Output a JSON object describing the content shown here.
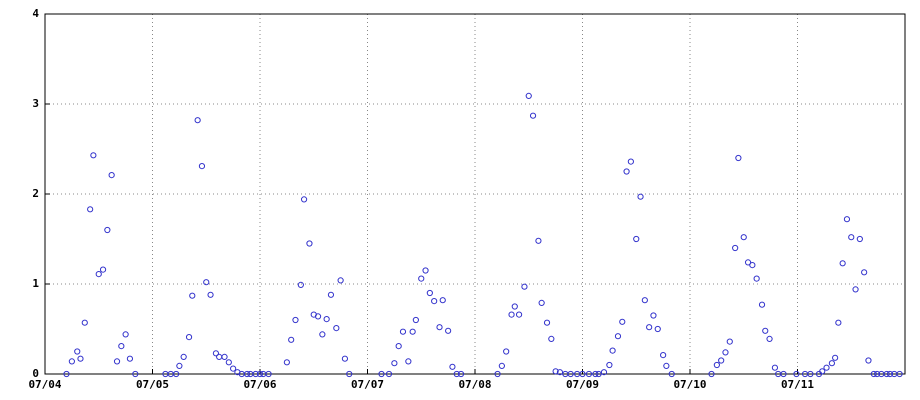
{
  "chart_data": {
    "type": "scatter",
    "color": "#3333cc",
    "grid": true,
    "xlim": [
      0,
      8
    ],
    "ylim": [
      0,
      4
    ],
    "yticks": [
      0,
      1,
      2,
      3,
      4
    ],
    "xticks": [
      {
        "value": 0,
        "label": "07/04"
      },
      {
        "value": 1,
        "label": "07/05"
      },
      {
        "value": 2,
        "label": "07/06"
      },
      {
        "value": 3,
        "label": "07/07"
      },
      {
        "value": 4,
        "label": "07/08"
      },
      {
        "value": 5,
        "label": "07/09"
      },
      {
        "value": 6,
        "label": "07/10"
      },
      {
        "value": 7,
        "label": "07/11"
      }
    ],
    "x": [
      0.2,
      0.25,
      0.3,
      0.33,
      0.37,
      0.42,
      0.45,
      0.5,
      0.54,
      0.58,
      0.62,
      0.67,
      0.71,
      0.75,
      0.79,
      0.84,
      1.12,
      1.17,
      1.22,
      1.25,
      1.29,
      1.34,
      1.37,
      1.42,
      1.46,
      1.5,
      1.54,
      1.59,
      1.62,
      1.67,
      1.71,
      1.75,
      1.79,
      1.83,
      1.88,
      1.91,
      1.96,
      2.0,
      2.03,
      2.08,
      2.25,
      2.29,
      2.33,
      2.38,
      2.41,
      2.46,
      2.5,
      2.54,
      2.58,
      2.62,
      2.66,
      2.71,
      2.75,
      2.79,
      2.83,
      3.13,
      3.2,
      3.25,
      3.29,
      3.33,
      3.38,
      3.42,
      3.45,
      3.5,
      3.54,
      3.58,
      3.62,
      3.67,
      3.7,
      3.75,
      3.79,
      3.83,
      3.87,
      4.21,
      4.25,
      4.29,
      4.34,
      4.37,
      4.41,
      4.46,
      4.5,
      4.54,
      4.59,
      4.62,
      4.67,
      4.71,
      4.75,
      4.79,
      4.84,
      4.89,
      4.95,
      5.0,
      5.06,
      5.12,
      5.15,
      5.2,
      5.25,
      5.28,
      5.33,
      5.37,
      5.41,
      5.45,
      5.5,
      5.54,
      5.58,
      5.62,
      5.66,
      5.7,
      5.75,
      5.78,
      5.83,
      6.2,
      6.25,
      6.29,
      6.33,
      6.37,
      6.42,
      6.45,
      6.5,
      6.54,
      6.58,
      6.62,
      6.67,
      6.7,
      6.74,
      6.79,
      6.82,
      6.87,
      6.99,
      7.07,
      7.12,
      7.2,
      7.23,
      7.27,
      7.32,
      7.35,
      7.38,
      7.42,
      7.46,
      7.5,
      7.54,
      7.58,
      7.62,
      7.66,
      7.71,
      7.74,
      7.78,
      7.83,
      7.86,
      7.9,
      7.95
    ],
    "values": [
      0,
      0.14,
      0.25,
      0.17,
      0.57,
      1.83,
      2.43,
      1.11,
      1.16,
      1.6,
      2.21,
      0.14,
      0.31,
      0.44,
      0.17,
      0,
      0,
      0,
      0,
      0.09,
      0.19,
      0.41,
      0.87,
      2.82,
      2.31,
      1.02,
      0.88,
      0.23,
      0.19,
      0.19,
      0.13,
      0.06,
      0.02,
      0,
      0,
      0,
      0,
      0,
      0,
      0,
      0.13,
      0.38,
      0.6,
      0.99,
      1.94,
      1.45,
      0.66,
      0.64,
      0.44,
      0.61,
      0.88,
      0.51,
      1.04,
      0.17,
      0,
      0,
      0,
      0.12,
      0.31,
      0.47,
      0.14,
      0.47,
      0.6,
      1.06,
      1.15,
      0.9,
      0.81,
      0.52,
      0.82,
      0.48,
      0.08,
      0,
      0,
      0,
      0.09,
      0.25,
      0.66,
      0.75,
      0.66,
      0.97,
      3.09,
      2.87,
      1.48,
      0.79,
      0.57,
      0.39,
      0.03,
      0.02,
      0,
      0,
      0,
      0,
      0,
      0,
      0,
      0.02,
      0.1,
      0.26,
      0.42,
      0.58,
      2.25,
      2.36,
      1.5,
      1.97,
      0.82,
      0.52,
      0.65,
      0.5,
      0.21,
      0.09,
      0,
      0,
      0.1,
      0.15,
      0.24,
      0.36,
      1.4,
      2.4,
      1.52,
      1.24,
      1.21,
      1.06,
      0.77,
      0.48,
      0.39,
      0.07,
      0,
      0,
      0,
      0,
      0,
      0,
      0.03,
      0.07,
      0.12,
      0.18,
      0.57,
      1.23,
      1.72,
      1.52,
      0.94,
      1.5,
      1.13,
      0.15,
      0,
      0,
      0,
      0,
      0,
      0,
      0
    ]
  }
}
